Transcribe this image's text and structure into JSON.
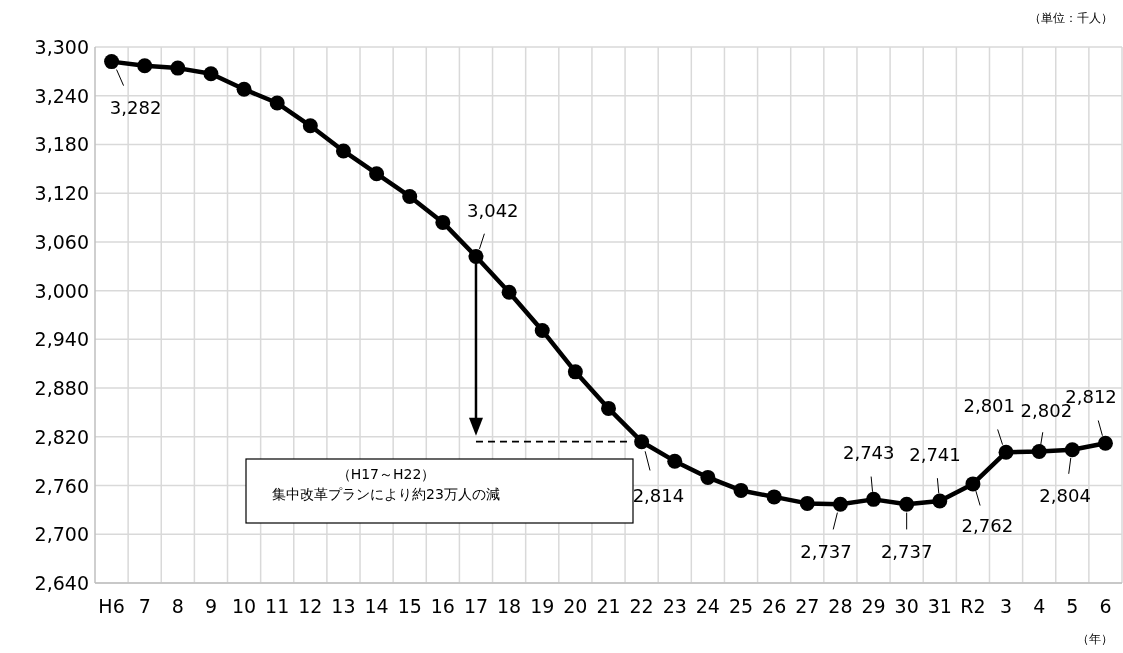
{
  "chart_data": {
    "type": "line",
    "categories": [
      "H6",
      "7",
      "8",
      "9",
      "10",
      "11",
      "12",
      "13",
      "14",
      "15",
      "16",
      "17",
      "18",
      "19",
      "20",
      "21",
      "22",
      "23",
      "24",
      "25",
      "26",
      "27",
      "28",
      "29",
      "30",
      "31",
      "R2",
      "3",
      "4",
      "5",
      "6"
    ],
    "series": [
      {
        "color": "#000000",
        "values": [
          3282,
          3277,
          3274,
          3267,
          3248,
          3231,
          3203,
          3172,
          3144,
          3116,
          3084,
          3042,
          2998,
          2951,
          2900,
          2855,
          2814,
          2790,
          2770,
          2754,
          2746,
          2738,
          2737,
          2743,
          2737,
          2741,
          2762,
          2801,
          2802,
          2804,
          2812
        ],
        "value_labels": [
          "3,282",
          null,
          null,
          null,
          null,
          null,
          null,
          null,
          null,
          null,
          null,
          "3,042",
          null,
          null,
          null,
          null,
          "2,814",
          null,
          null,
          null,
          null,
          null,
          "2,737",
          "2,743",
          "2,737",
          "2,741",
          "2,762",
          "2,801",
          "2,802",
          "2,804",
          "2,812"
        ]
      }
    ],
    "ylim": [
      2640,
      3300
    ],
    "yticks": [
      {
        "value": 2640,
        "label": "2,640"
      },
      {
        "value": 2700,
        "label": "2,700"
      },
      {
        "value": 2760,
        "label": "2,760"
      },
      {
        "value": 2820,
        "label": "2,820"
      },
      {
        "value": 2880,
        "label": "2,880"
      },
      {
        "value": 2940,
        "label": "2,940"
      },
      {
        "value": 3000,
        "label": "3,000"
      },
      {
        "value": 3060,
        "label": "3,060"
      },
      {
        "value": 3120,
        "label": "3,120"
      },
      {
        "value": 3180,
        "label": "3,180"
      },
      {
        "value": 3240,
        "label": "3,240"
      },
      {
        "value": 3300,
        "label": "3,300"
      }
    ],
    "grid": true,
    "marker": "circle",
    "line_style": "solid",
    "annotations": [
      "（単位：千人）",
      "（年）",
      "（H17～H22）",
      "集中改革プランにより約23万人の減"
    ]
  }
}
